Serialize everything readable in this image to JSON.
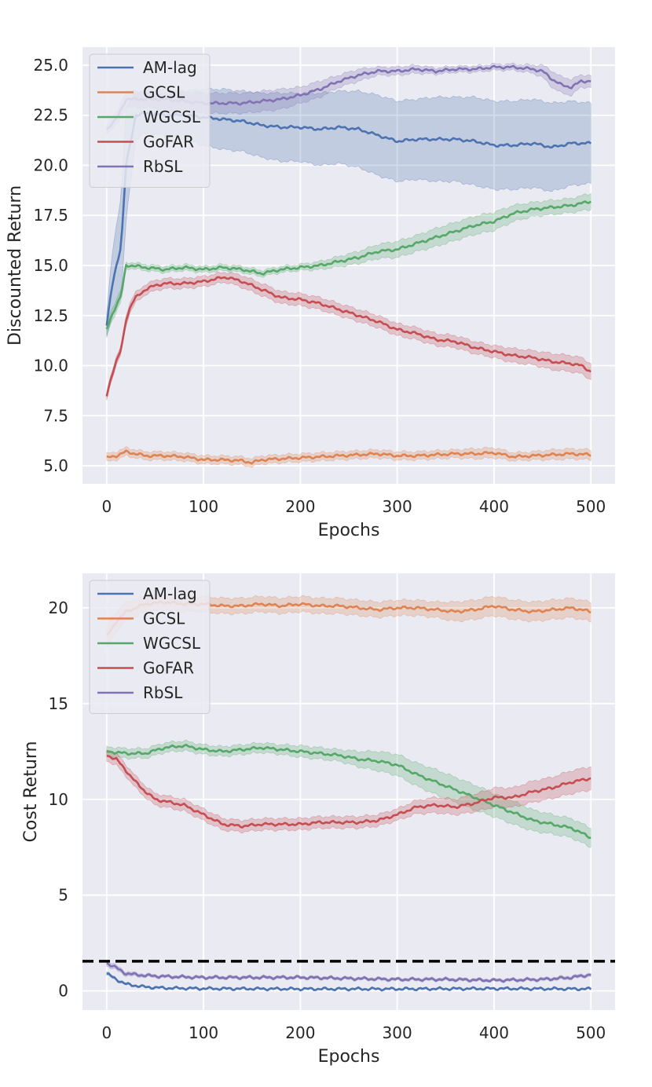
{
  "chart_data": [
    {
      "type": "line",
      "title": "",
      "xlabel": "Epochs",
      "ylabel": "Discounted Return",
      "xlim": [
        -25,
        525
      ],
      "ylim": [
        4.1,
        25.9
      ],
      "xticks": [
        0,
        100,
        200,
        300,
        400,
        500
      ],
      "xtick_labels": [
        "0",
        "100",
        "200",
        "300",
        "400",
        "500"
      ],
      "yticks": [
        5.0,
        7.5,
        10.0,
        12.5,
        15.0,
        17.5,
        20.0,
        22.5,
        25.0
      ],
      "ytick_labels": [
        "5.0",
        "7.5",
        "10.0",
        "12.5",
        "15.0",
        "17.5",
        "20.0",
        "22.5",
        "25.0"
      ],
      "grid": true,
      "legend": "top-left",
      "series": [
        {
          "name": "AM-lag",
          "color": "#4c72b0",
          "x": [
            0,
            5,
            10,
            15,
            20,
            30,
            40,
            60,
            80,
            100,
            120,
            140,
            160,
            180,
            200,
            220,
            240,
            260,
            280,
            300,
            320,
            340,
            360,
            380,
            400,
            420,
            440,
            460,
            480,
            500
          ],
          "y": [
            12.0,
            13.8,
            15.0,
            16.0,
            20.0,
            22.5,
            22.6,
            22.5,
            22.5,
            22.4,
            22.3,
            22.2,
            22.0,
            21.9,
            21.9,
            21.8,
            21.9,
            21.8,
            21.5,
            21.2,
            21.3,
            21.3,
            21.3,
            21.2,
            21.0,
            21.0,
            21.1,
            20.9,
            21.1,
            21.1
          ],
          "band": [
            0.6,
            1.5,
            2.0,
            2.5,
            2.8,
            1.2,
            1.0,
            1.0,
            1.2,
            1.4,
            1.5,
            1.5,
            1.6,
            1.7,
            1.7,
            1.8,
            1.8,
            1.9,
            2.0,
            2.0,
            2.0,
            2.1,
            2.1,
            2.2,
            2.2,
            2.2,
            2.2,
            2.2,
            2.1,
            2.0
          ]
        },
        {
          "name": "GCSL",
          "color": "#dd8452",
          "x": [
            0,
            10,
            20,
            40,
            60,
            80,
            100,
            120,
            140,
            150,
            160,
            180,
            200,
            240,
            280,
            300,
            320,
            360,
            380,
            400,
            420,
            440,
            460,
            480,
            500
          ],
          "y": [
            5.4,
            5.5,
            5.7,
            5.5,
            5.5,
            5.45,
            5.3,
            5.3,
            5.25,
            5.15,
            5.3,
            5.35,
            5.4,
            5.5,
            5.6,
            5.5,
            5.5,
            5.6,
            5.6,
            5.65,
            5.45,
            5.5,
            5.55,
            5.6,
            5.55
          ],
          "band": [
            0.2,
            0.2,
            0.2,
            0.2,
            0.2,
            0.2,
            0.2,
            0.2,
            0.2,
            0.2,
            0.2,
            0.2,
            0.2,
            0.2,
            0.2,
            0.2,
            0.2,
            0.2,
            0.25,
            0.25,
            0.2,
            0.2,
            0.25,
            0.25,
            0.25
          ]
        },
        {
          "name": "WGCSL",
          "color": "#55a868",
          "x": [
            0,
            5,
            10,
            15,
            20,
            25,
            40,
            60,
            80,
            100,
            120,
            140,
            160,
            180,
            200,
            220,
            240,
            260,
            280,
            300,
            320,
            340,
            360,
            380,
            400,
            420,
            440,
            460,
            480,
            500
          ],
          "y": [
            11.8,
            12.5,
            13.0,
            13.5,
            15.0,
            15.0,
            14.9,
            14.8,
            14.9,
            14.8,
            14.9,
            14.8,
            14.6,
            14.8,
            14.9,
            15.0,
            15.2,
            15.4,
            15.7,
            15.8,
            16.1,
            16.4,
            16.7,
            17.0,
            17.2,
            17.6,
            17.8,
            17.9,
            18.0,
            18.2
          ],
          "band": [
            0.3,
            0.3,
            0.3,
            0.3,
            0.15,
            0.15,
            0.15,
            0.15,
            0.15,
            0.15,
            0.15,
            0.15,
            0.15,
            0.15,
            0.15,
            0.2,
            0.25,
            0.3,
            0.35,
            0.4,
            0.4,
            0.45,
            0.45,
            0.45,
            0.45,
            0.4,
            0.35,
            0.35,
            0.35,
            0.4
          ]
        },
        {
          "name": "GoFAR",
          "color": "#c44e52",
          "x": [
            0,
            5,
            10,
            15,
            20,
            25,
            30,
            40,
            50,
            60,
            80,
            100,
            110,
            120,
            125,
            140,
            160,
            180,
            200,
            220,
            240,
            260,
            280,
            300,
            320,
            340,
            360,
            380,
            400,
            420,
            440,
            460,
            480,
            490,
            500
          ],
          "y": [
            8.5,
            9.5,
            10.2,
            10.8,
            12.3,
            13.0,
            13.4,
            13.8,
            14.0,
            14.1,
            14.1,
            14.2,
            14.3,
            14.4,
            14.4,
            14.2,
            13.8,
            13.4,
            13.3,
            13.1,
            12.8,
            12.5,
            12.2,
            11.8,
            11.6,
            11.3,
            11.2,
            10.9,
            10.7,
            10.5,
            10.4,
            10.2,
            10.1,
            10.0,
            9.7
          ],
          "band": [
            0.2,
            0.2,
            0.2,
            0.2,
            0.25,
            0.25,
            0.25,
            0.25,
            0.25,
            0.25,
            0.25,
            0.25,
            0.25,
            0.25,
            0.25,
            0.3,
            0.3,
            0.3,
            0.3,
            0.3,
            0.3,
            0.3,
            0.3,
            0.3,
            0.3,
            0.3,
            0.3,
            0.3,
            0.3,
            0.35,
            0.35,
            0.4,
            0.4,
            0.4,
            0.4
          ]
        },
        {
          "name": "RbSL",
          "color": "#8172b3",
          "x": [
            0,
            10,
            15,
            20,
            40,
            60,
            80,
            100,
            120,
            140,
            160,
            180,
            200,
            220,
            240,
            260,
            280,
            300,
            320,
            340,
            360,
            380,
            400,
            420,
            440,
            450,
            460,
            470,
            480,
            490,
            500
          ],
          "y": [
            21.8,
            22.3,
            22.8,
            23.3,
            23.3,
            23.3,
            23.2,
            23.1,
            23.1,
            23.1,
            23.2,
            23.3,
            23.5,
            23.8,
            24.2,
            24.5,
            24.7,
            24.7,
            24.8,
            24.7,
            24.8,
            24.8,
            24.9,
            24.9,
            24.8,
            24.7,
            24.3,
            24.0,
            23.9,
            24.2,
            24.2
          ],
          "band": [
            0.2,
            0.3,
            0.4,
            0.4,
            0.4,
            0.5,
            0.5,
            0.5,
            0.5,
            0.5,
            0.5,
            0.5,
            0.4,
            0.4,
            0.3,
            0.3,
            0.2,
            0.2,
            0.2,
            0.15,
            0.15,
            0.15,
            0.15,
            0.15,
            0.2,
            0.3,
            0.4,
            0.4,
            0.4,
            0.3,
            0.3
          ]
        }
      ]
    },
    {
      "type": "line",
      "title": "",
      "xlabel": "Epochs",
      "ylabel": "Cost Return",
      "xlim": [
        -25,
        525
      ],
      "ylim": [
        -1,
        21.8
      ],
      "xticks": [
        0,
        100,
        200,
        300,
        400,
        500
      ],
      "xtick_labels": [
        "0",
        "100",
        "200",
        "300",
        "400",
        "500"
      ],
      "yticks": [
        0,
        5,
        10,
        15,
        20
      ],
      "ytick_labels": [
        "0",
        "5",
        "10",
        "15",
        "20"
      ],
      "grid": true,
      "legend": "top-left",
      "threshold_line": {
        "y": 1.55,
        "color": "#000000",
        "style": "dashed"
      },
      "series": [
        {
          "name": "AM-lag",
          "color": "#4c72b0",
          "x": [
            0,
            10,
            20,
            40,
            60,
            100,
            200,
            300,
            400,
            500
          ],
          "y": [
            0.9,
            0.6,
            0.35,
            0.2,
            0.15,
            0.12,
            0.1,
            0.1,
            0.12,
            0.1
          ],
          "band": [
            0.08,
            0.06,
            0.05,
            0.04,
            0.04,
            0.04,
            0.04,
            0.04,
            0.04,
            0.04
          ]
        },
        {
          "name": "GCSL",
          "color": "#dd8452",
          "x": [
            0,
            10,
            20,
            40,
            60,
            80,
            100,
            120,
            140,
            160,
            180,
            200,
            220,
            240,
            260,
            280,
            300,
            320,
            340,
            360,
            380,
            400,
            420,
            440,
            460,
            480,
            500
          ],
          "y": [
            18.5,
            19.3,
            19.8,
            20.2,
            20.3,
            20.2,
            20.2,
            20.1,
            20.1,
            20.2,
            20.1,
            20.2,
            20.1,
            20.1,
            20.0,
            19.9,
            20.0,
            20.0,
            19.9,
            19.8,
            19.9,
            20.1,
            19.9,
            19.8,
            19.9,
            20.0,
            19.8
          ],
          "band": [
            0.6,
            0.5,
            0.5,
            0.4,
            0.4,
            0.4,
            0.4,
            0.4,
            0.4,
            0.4,
            0.4,
            0.4,
            0.4,
            0.4,
            0.4,
            0.4,
            0.4,
            0.4,
            0.4,
            0.5,
            0.5,
            0.5,
            0.5,
            0.5,
            0.5,
            0.5,
            0.5
          ]
        },
        {
          "name": "WGCSL",
          "color": "#55a868",
          "x": [
            0,
            20,
            40,
            60,
            80,
            100,
            120,
            140,
            160,
            180,
            200,
            220,
            240,
            260,
            280,
            300,
            320,
            340,
            360,
            380,
            400,
            420,
            440,
            460,
            480,
            500
          ],
          "y": [
            12.5,
            12.4,
            12.4,
            12.7,
            12.8,
            12.6,
            12.5,
            12.6,
            12.7,
            12.6,
            12.5,
            12.4,
            12.3,
            12.1,
            12.0,
            11.8,
            11.3,
            10.9,
            10.5,
            10.1,
            9.7,
            9.3,
            8.9,
            8.7,
            8.5,
            8.0
          ],
          "band": [
            0.25,
            0.25,
            0.25,
            0.25,
            0.25,
            0.25,
            0.25,
            0.25,
            0.25,
            0.25,
            0.3,
            0.3,
            0.3,
            0.4,
            0.5,
            0.55,
            0.6,
            0.65,
            0.65,
            0.65,
            0.6,
            0.6,
            0.55,
            0.5,
            0.5,
            0.5
          ]
        },
        {
          "name": "GoFAR",
          "color": "#c44e52",
          "x": [
            0,
            10,
            20,
            30,
            40,
            50,
            60,
            80,
            100,
            120,
            140,
            160,
            180,
            200,
            220,
            240,
            260,
            280,
            300,
            320,
            340,
            360,
            380,
            400,
            420,
            440,
            460,
            480,
            500
          ],
          "y": [
            12.3,
            12.1,
            11.5,
            10.9,
            10.4,
            10.0,
            9.9,
            9.7,
            9.2,
            8.7,
            8.6,
            8.7,
            8.7,
            8.7,
            8.8,
            8.8,
            8.8,
            8.9,
            9.2,
            9.6,
            9.7,
            9.6,
            9.8,
            10.1,
            10.1,
            10.4,
            10.6,
            10.9,
            11.1
          ],
          "band": [
            0.3,
            0.3,
            0.3,
            0.3,
            0.3,
            0.3,
            0.3,
            0.3,
            0.3,
            0.3,
            0.3,
            0.3,
            0.3,
            0.3,
            0.3,
            0.3,
            0.3,
            0.3,
            0.3,
            0.35,
            0.4,
            0.4,
            0.45,
            0.5,
            0.5,
            0.55,
            0.55,
            0.6,
            0.6
          ]
        },
        {
          "name": "RbSL",
          "color": "#8172b3",
          "x": [
            0,
            10,
            20,
            40,
            60,
            100,
            150,
            200,
            250,
            300,
            350,
            400,
            450,
            480,
            500
          ],
          "y": [
            1.45,
            1.2,
            0.9,
            0.8,
            0.75,
            0.7,
            0.7,
            0.7,
            0.65,
            0.6,
            0.6,
            0.55,
            0.6,
            0.7,
            0.85
          ],
          "band": [
            0.15,
            0.12,
            0.1,
            0.08,
            0.07,
            0.07,
            0.07,
            0.07,
            0.07,
            0.07,
            0.07,
            0.07,
            0.07,
            0.08,
            0.08
          ]
        }
      ]
    }
  ]
}
